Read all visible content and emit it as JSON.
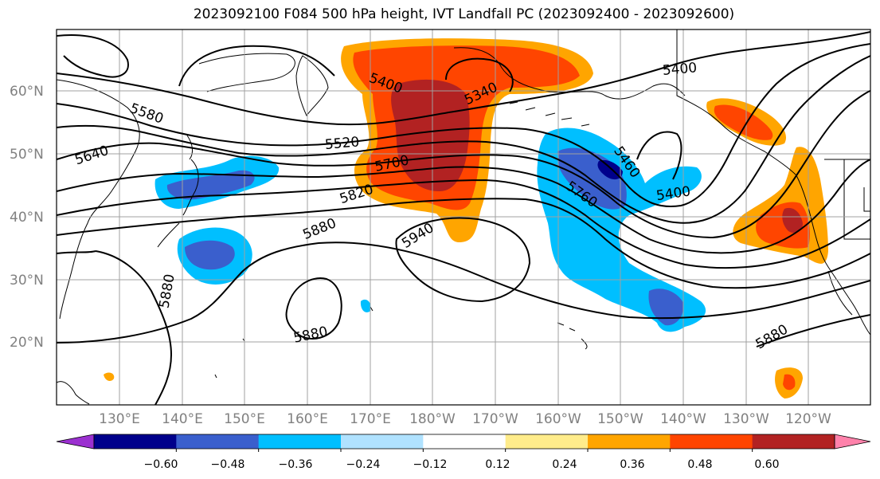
{
  "title": "2023092100 F084 500 hPa height, IVT Landfall PC (2023092400 - 2023092600)",
  "lat_ticks": [
    "60°N",
    "50°N",
    "40°N",
    "30°N",
    "20°N"
  ],
  "lon_ticks": [
    "130°E",
    "140°E",
    "150°E",
    "160°E",
    "170°E",
    "180°W",
    "170°W",
    "160°W",
    "150°W",
    "140°W",
    "130°W",
    "120°W"
  ],
  "colorbar": {
    "tick_labels": [
      "−0.60",
      "−0.48",
      "−0.36",
      "−0.24",
      "−0.12",
      "0.12",
      "0.24",
      "0.36",
      "0.48",
      "0.60"
    ],
    "colors": [
      "#9b30d0",
      "#00008b",
      "#3a5fcd",
      "#00bfff",
      "#b0e2ff",
      "#ffffff",
      "#ffec8b",
      "#ffa500",
      "#ff4500",
      "#b22222",
      "#ff82ab"
    ]
  },
  "contour_labels": [
    "5580",
    "5640",
    "5400",
    "5340",
    "5520",
    "5700",
    "5820",
    "5880",
    "5940",
    "5460",
    "5400",
    "5760",
    "5400",
    "5880",
    "5880",
    "5880"
  ]
}
